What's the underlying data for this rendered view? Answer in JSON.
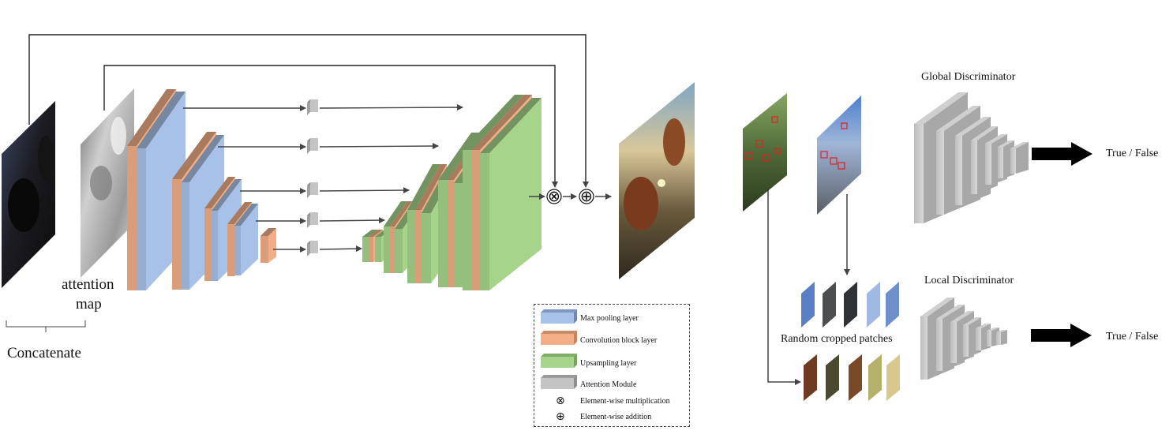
{
  "labels": {
    "attention": "attention",
    "map": "map",
    "concatenate": "Concatenate",
    "global_discriminator": "Global Discriminator",
    "local_discriminator": "Local Discriminator",
    "true_false_global": "True / False",
    "true_false_local": "True / False",
    "random_cropped_patches": "Random cropped patches"
  },
  "legend": [
    {
      "label": "Max pooling layer",
      "color": "#a8c1e8",
      "icon": "blue-block-icon"
    },
    {
      "label": "Convolution block layer",
      "color": "#f2ae86",
      "icon": "orange-block-icon"
    },
    {
      "label": "Upsampling layer",
      "color": "#a5d48a",
      "icon": "green-block-icon"
    },
    {
      "label": "Attention Module",
      "color": "#c4c4c4",
      "icon": "gray-block-icon"
    },
    {
      "label": "Element-wise multiplication",
      "icon": "otimes-icon",
      "glyph": "⊗"
    },
    {
      "label": "Element-wise addition",
      "icon": "oplus-icon",
      "glyph": "⊕"
    }
  ],
  "symbols": {
    "multiply": "⊗",
    "add": "⊕"
  },
  "colors": {
    "blue": "#a8c1e8",
    "orange": "#f2ae86",
    "green": "#a5d48a",
    "gray": "#c4c4c4",
    "arrow": "#444444",
    "patch_red": "#e02020"
  }
}
